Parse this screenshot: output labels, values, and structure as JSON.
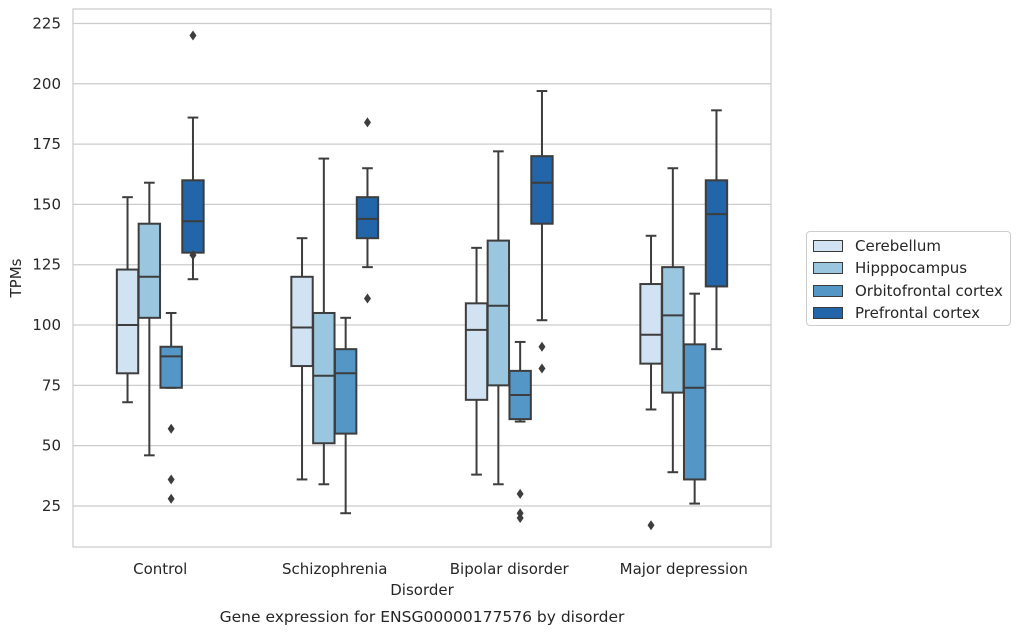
{
  "chart_data": {
    "type": "boxplot",
    "xlabel": "Disorder",
    "ylabel": "TPMs",
    "caption": "Gene expression for ENSG00000177576 by disorder",
    "ylim": [
      8,
      231
    ],
    "yticks": [
      25,
      50,
      75,
      100,
      125,
      150,
      175,
      200,
      225
    ],
    "grid": "horizontal",
    "legend_position": "right",
    "categories": [
      "Control",
      "Schizophrenia",
      "Bipolar disorder",
      "Major depression"
    ],
    "series": [
      {
        "name": "Cerebellum",
        "color": "#d1e2f2",
        "boxes": [
          {
            "whislo": 68,
            "q1": 80,
            "med": 100,
            "q3": 123,
            "whishi": 153,
            "fliers": []
          },
          {
            "whislo": 36,
            "q1": 83,
            "med": 99,
            "q3": 120,
            "whishi": 136,
            "fliers": []
          },
          {
            "whislo": 38,
            "q1": 69,
            "med": 98,
            "q3": 109,
            "whishi": 132,
            "fliers": []
          },
          {
            "whislo": 65,
            "q1": 84,
            "med": 96,
            "q3": 117,
            "whishi": 137,
            "fliers": [
              17
            ]
          }
        ]
      },
      {
        "name": "Hipppocampus",
        "color": "#9ac7df",
        "boxes": [
          {
            "whislo": 46,
            "q1": 103,
            "med": 120,
            "q3": 142,
            "whishi": 159,
            "fliers": []
          },
          {
            "whislo": 34,
            "q1": 51,
            "med": 79,
            "q3": 105,
            "whishi": 169,
            "fliers": []
          },
          {
            "whislo": 34,
            "q1": 75,
            "med": 108,
            "q3": 135,
            "whishi": 172,
            "fliers": []
          },
          {
            "whislo": 39,
            "q1": 72,
            "med": 104,
            "q3": 124,
            "whishi": 165,
            "fliers": []
          }
        ]
      },
      {
        "name": "Orbitofrontal cortex",
        "color": "#5497c6",
        "boxes": [
          {
            "whislo": 74,
            "q1": 74,
            "med": 87,
            "q3": 91,
            "whishi": 105,
            "fliers": [
              57,
              36,
              28
            ]
          },
          {
            "whislo": 22,
            "q1": 55,
            "med": 80,
            "q3": 90,
            "whishi": 103,
            "fliers": []
          },
          {
            "whislo": 60,
            "q1": 61,
            "med": 71,
            "q3": 81,
            "whishi": 93,
            "fliers": [
              30,
              22,
              20
            ]
          },
          {
            "whislo": 26,
            "q1": 36,
            "med": 74,
            "q3": 92,
            "whishi": 113,
            "fliers": []
          }
        ]
      },
      {
        "name": "Prefrontal cortex",
        "color": "#2265a8",
        "boxes": [
          {
            "whislo": 119,
            "q1": 130,
            "med": 143,
            "q3": 160,
            "whishi": 186,
            "fliers": [
              220,
              129
            ]
          },
          {
            "whislo": 124,
            "q1": 136,
            "med": 144,
            "q3": 153,
            "whishi": 165,
            "fliers": [
              184,
              111
            ]
          },
          {
            "whislo": 102,
            "q1": 142,
            "med": 159,
            "q3": 170,
            "whishi": 197,
            "fliers": [
              91,
              82
            ]
          },
          {
            "whislo": 90,
            "q1": 116,
            "med": 146,
            "q3": 160,
            "whishi": 189,
            "fliers": []
          }
        ]
      }
    ]
  }
}
